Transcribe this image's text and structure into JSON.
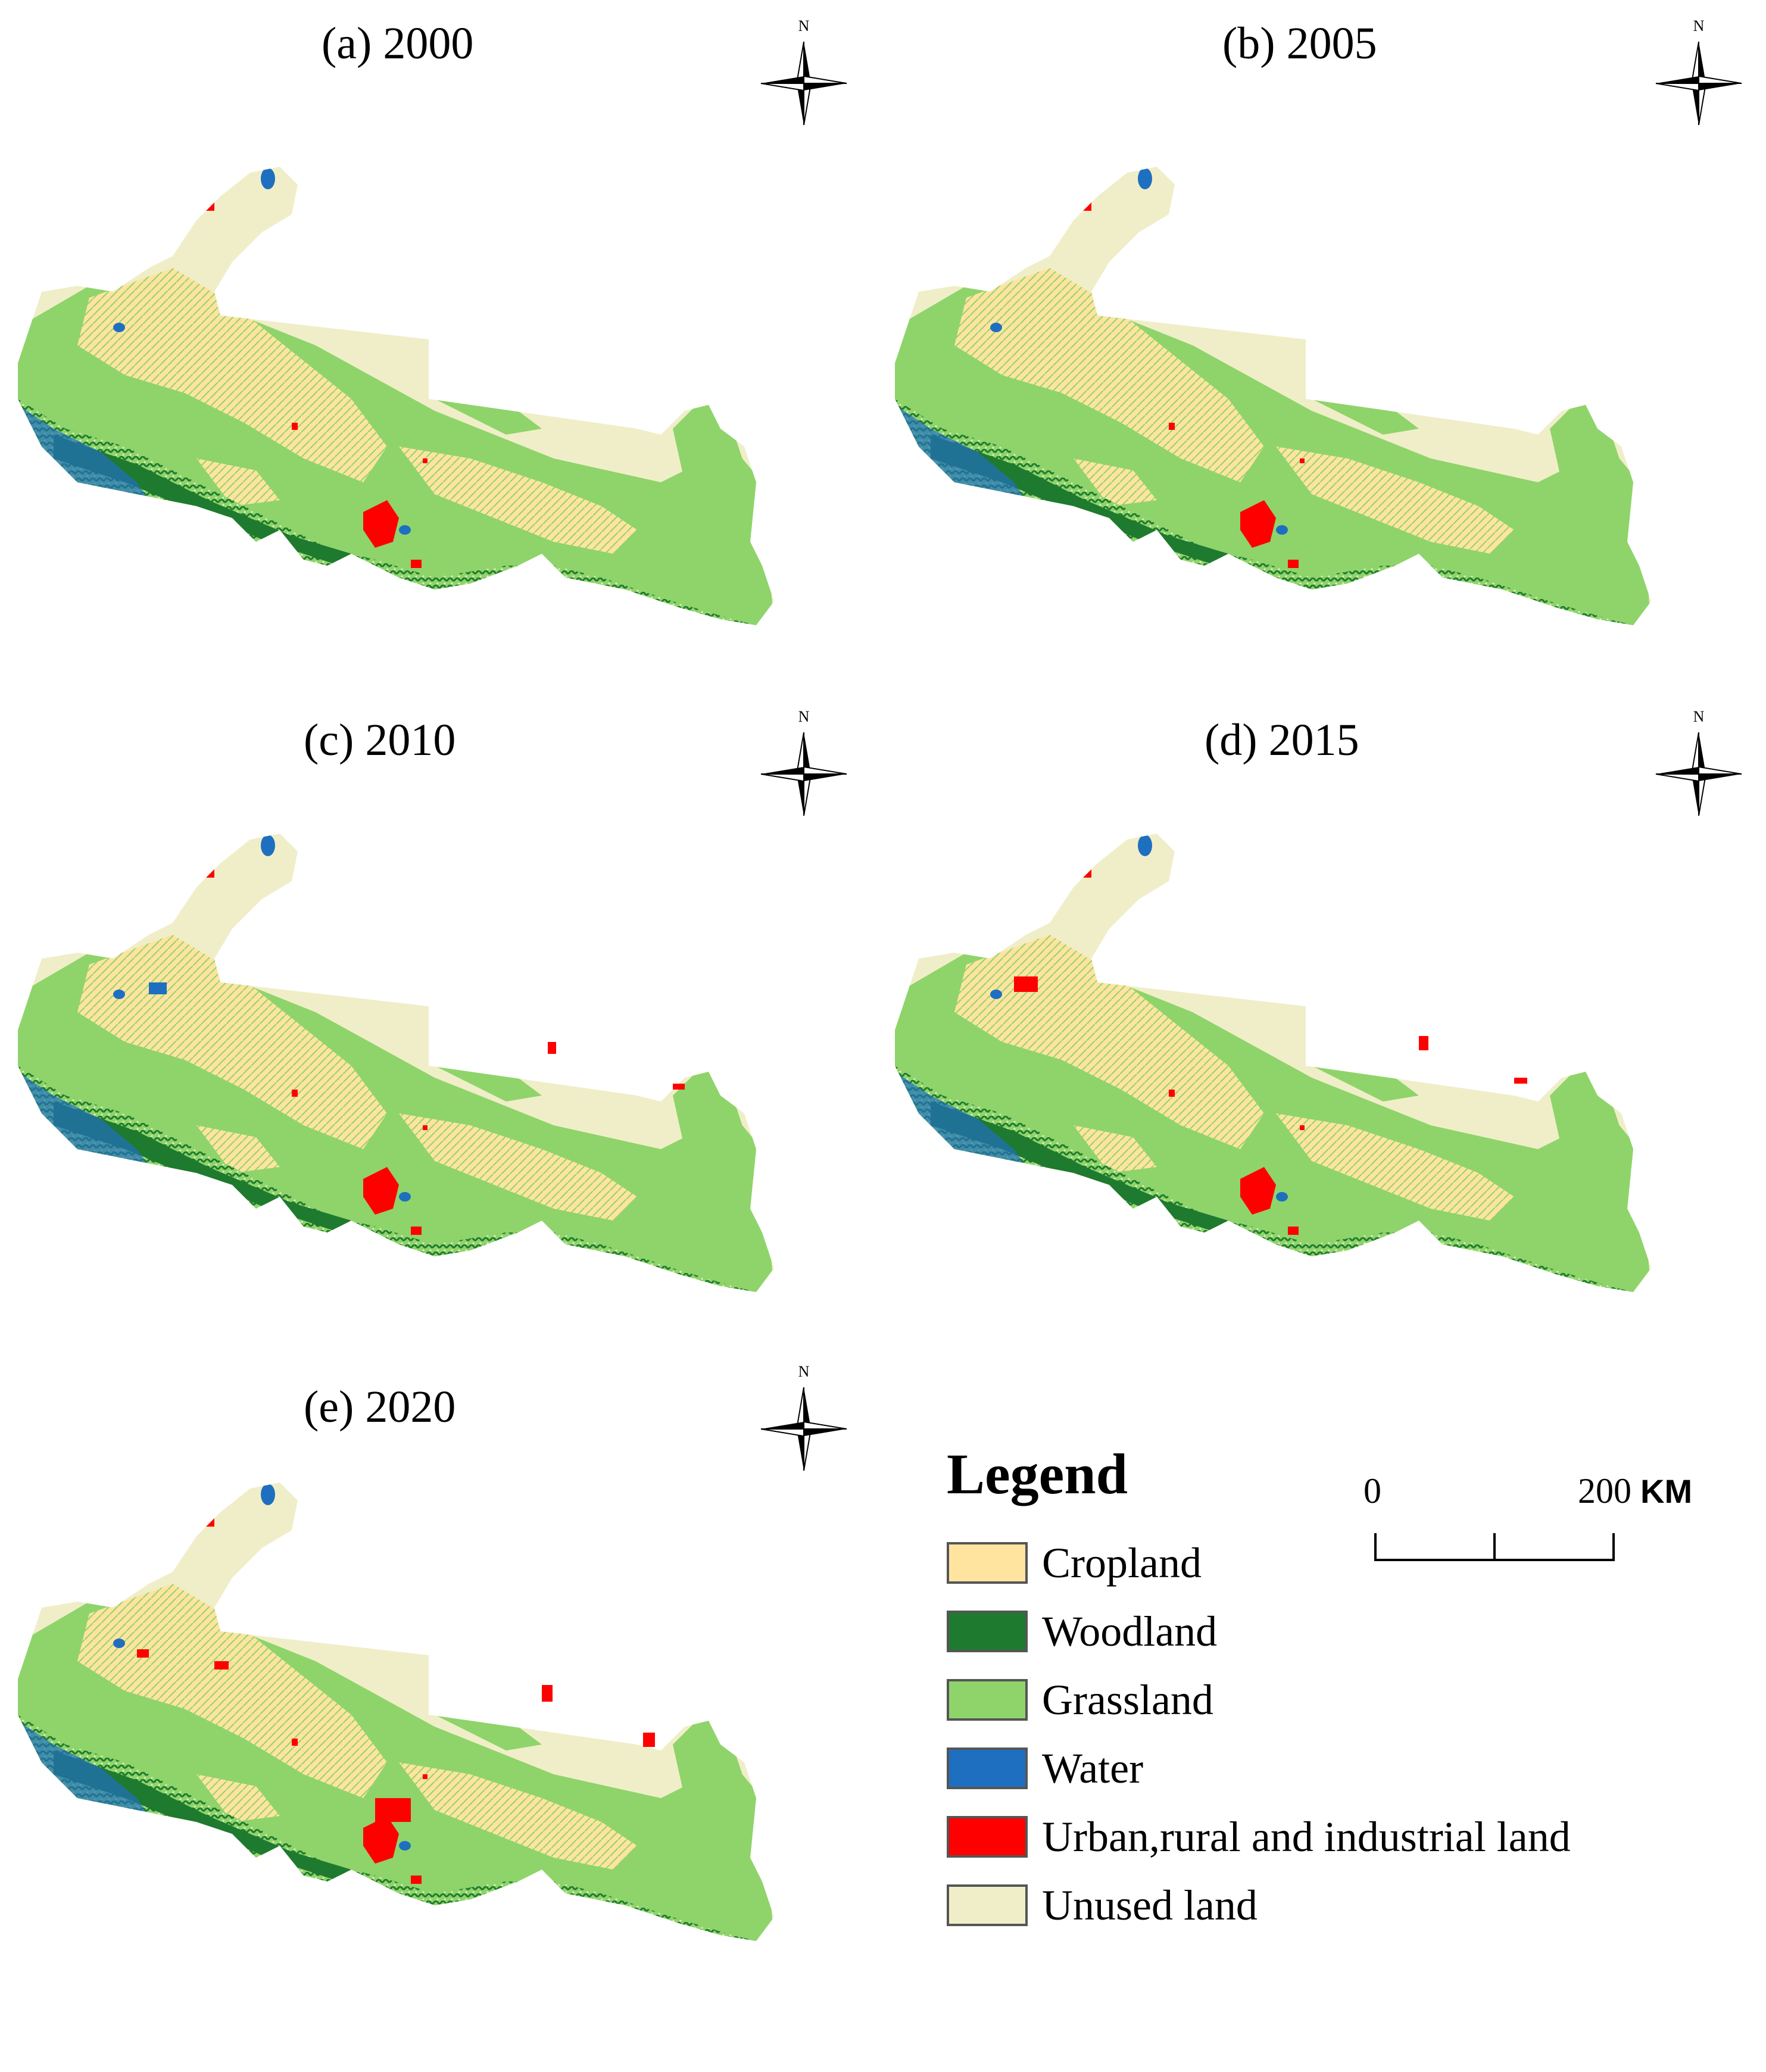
{
  "panels": [
    {
      "id": "a",
      "title": "(a) 2000",
      "north": "N"
    },
    {
      "id": "b",
      "title": "(b) 2005",
      "north": "N"
    },
    {
      "id": "c",
      "title": "(c) 2010",
      "north": "N"
    },
    {
      "id": "d",
      "title": "(d) 2015",
      "north": "N"
    },
    {
      "id": "e",
      "title": "(e) 2020",
      "north": "N"
    }
  ],
  "legend": {
    "title": "Legend",
    "items": [
      {
        "label": "Cropland",
        "color": "#FFE4A0"
      },
      {
        "label": "Woodland",
        "color": "#1E7A2E"
      },
      {
        "label": "Grassland",
        "color": "#8ED46A"
      },
      {
        "label": "Water",
        "color": "#1F6FC0"
      },
      {
        "label": "Urban,rural and industrial land",
        "color": "#FF0000"
      },
      {
        "label": "Unused land",
        "color": "#F0EEC8"
      }
    ]
  },
  "scale_bar": {
    "start": "0",
    "end": "200",
    "unit": "KM"
  }
}
